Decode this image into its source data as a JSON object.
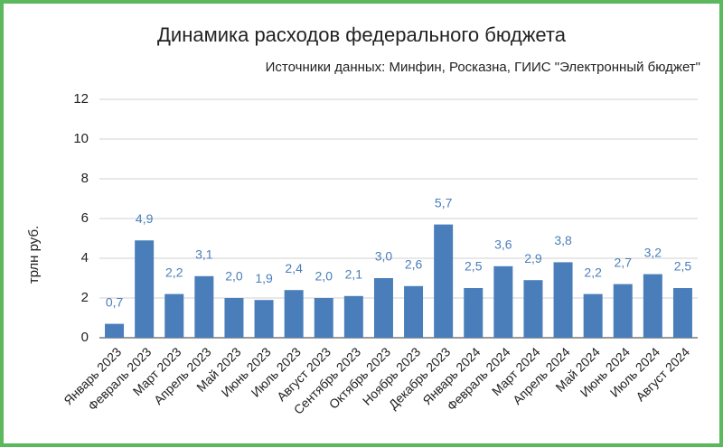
{
  "chart_data": {
    "type": "bar",
    "title": "Динамика расходов федерального бюджета",
    "subtitle": "Источники данных: Минфин, Росказна, ГИИС \"Электронный бюджет\"",
    "y_label": "трлн руб.",
    "categories": [
      "Январь 2023",
      "Февраль 2023",
      "Март 2023",
      "Апрель 2023",
      "Май 2023",
      "Июнь 2023",
      "Июль 2023",
      "Август 2023",
      "Сентябрь 2023",
      "Октябрь 2023",
      "Ноябрь 2023",
      "Декабрь 2023",
      "Январь 2024",
      "Февраль 2024",
      "Март 2024",
      "Апрель 2024",
      "Май 2024",
      "Июнь 2024",
      "Июль 2024",
      "Август 2024"
    ],
    "values": [
      0.7,
      4.9,
      2.2,
      3.1,
      2.0,
      1.9,
      2.4,
      2.0,
      2.1,
      3.0,
      2.6,
      5.7,
      2.5,
      3.6,
      2.9,
      3.8,
      2.2,
      2.7,
      3.2,
      2.5
    ],
    "value_labels": [
      "0,7",
      "4,9",
      "2,2",
      "3,1",
      "2,0",
      "1,9",
      "2,4",
      "2,0",
      "2,1",
      "3,0",
      "2,6",
      "5,7",
      "2,5",
      "3,6",
      "2,9",
      "3,8",
      "2,2",
      "2,7",
      "3,2",
      "2,5"
    ],
    "color": "#4a7ebb",
    "ylim": [
      0,
      12
    ],
    "yticks": [
      0,
      2,
      4,
      6,
      8,
      10,
      12
    ],
    "grid": true
  }
}
